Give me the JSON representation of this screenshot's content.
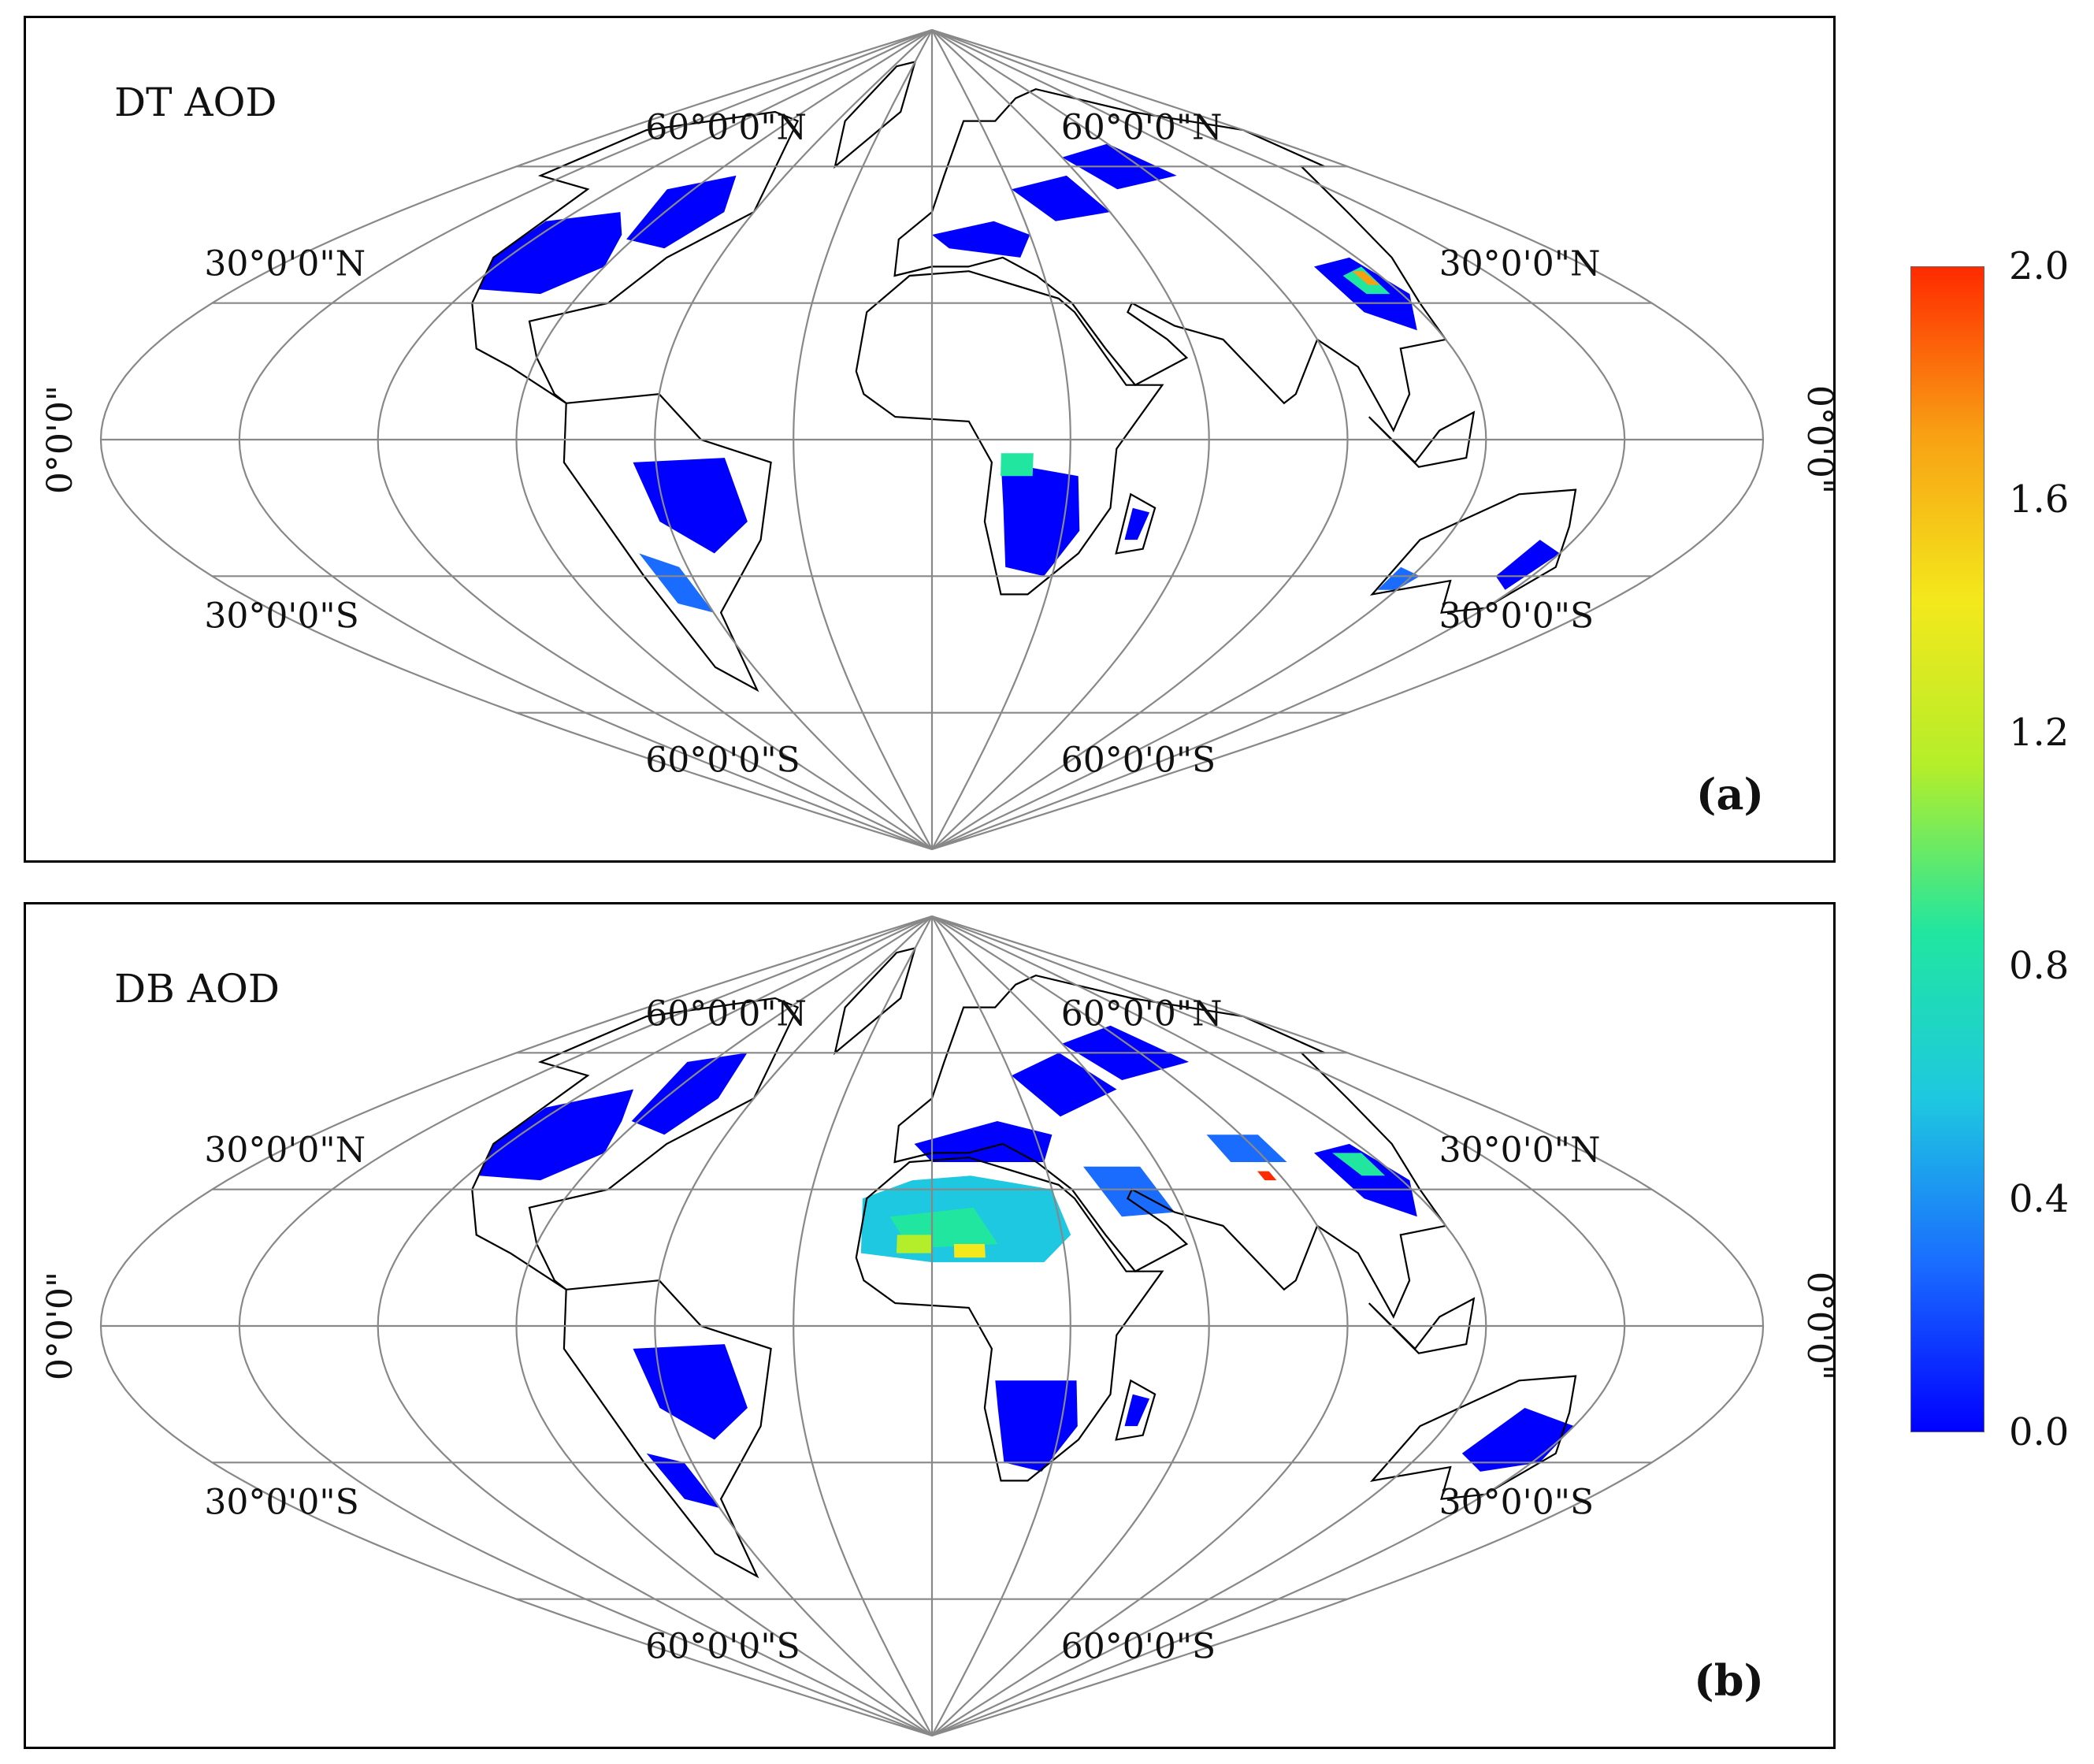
{
  "panels": [
    {
      "id": "a",
      "title": "DT AOD",
      "tag": "(a)",
      "labels": {
        "lat60n": "60°0'0\"N",
        "lat30n": "30°0'0\"N",
        "equator": "0°0'0\"",
        "lat30s": "30°0'0\"S",
        "lat60s": "60°0'0\"S"
      }
    },
    {
      "id": "b",
      "title": "DB AOD",
      "tag": "(b)",
      "labels": {
        "lat60n": "60°0'0\"N",
        "lat30n": "30°0'0\"N",
        "equator": "0°0'0\"",
        "lat30s": "30°0'0\"S",
        "lat60s": "60°0'0\"S"
      }
    }
  ],
  "colorbar": {
    "ticks": [
      "2.0",
      "1.6",
      "1.2",
      "0.8",
      "0.4",
      "0.0"
    ],
    "min": 0.0,
    "max": 2.0,
    "colors": [
      "#0000ff",
      "#1a6cff",
      "#1ec8e0",
      "#20e6a0",
      "#b4ee2a",
      "#f4e81c",
      "#f8a014",
      "#ff2a00"
    ]
  },
  "map": {
    "projection": "sinusoidal",
    "graticule_color": "#888888",
    "coastline_color": "#000000"
  }
}
